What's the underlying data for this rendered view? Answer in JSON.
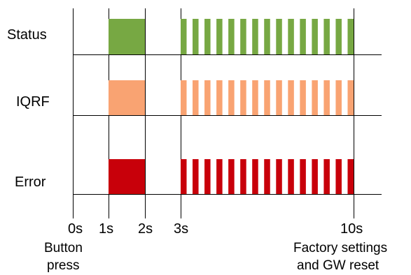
{
  "signals": [
    {
      "label": "Status",
      "color": "#77a843"
    },
    {
      "label": "IQRF",
      "color": "#f9a372"
    },
    {
      "label": "Error",
      "color": "#c8000a"
    }
  ],
  "time_ticks": [
    {
      "time": 0,
      "label": "0s"
    },
    {
      "time": 1,
      "label": "1s"
    },
    {
      "time": 2,
      "label": "2s"
    },
    {
      "time": 3,
      "label": "3s"
    },
    {
      "time": 10,
      "label": "10s"
    }
  ],
  "annotations": {
    "start_line1": "Button",
    "start_line2": "press",
    "end_line1": "Factory settings",
    "end_line2": "and GW reset"
  },
  "pattern": {
    "solid_on_from_s": 1,
    "solid_on_to_s": 2,
    "blink_from_s": 3,
    "blink_to_s": 10,
    "blink_pulses": 15
  }
}
